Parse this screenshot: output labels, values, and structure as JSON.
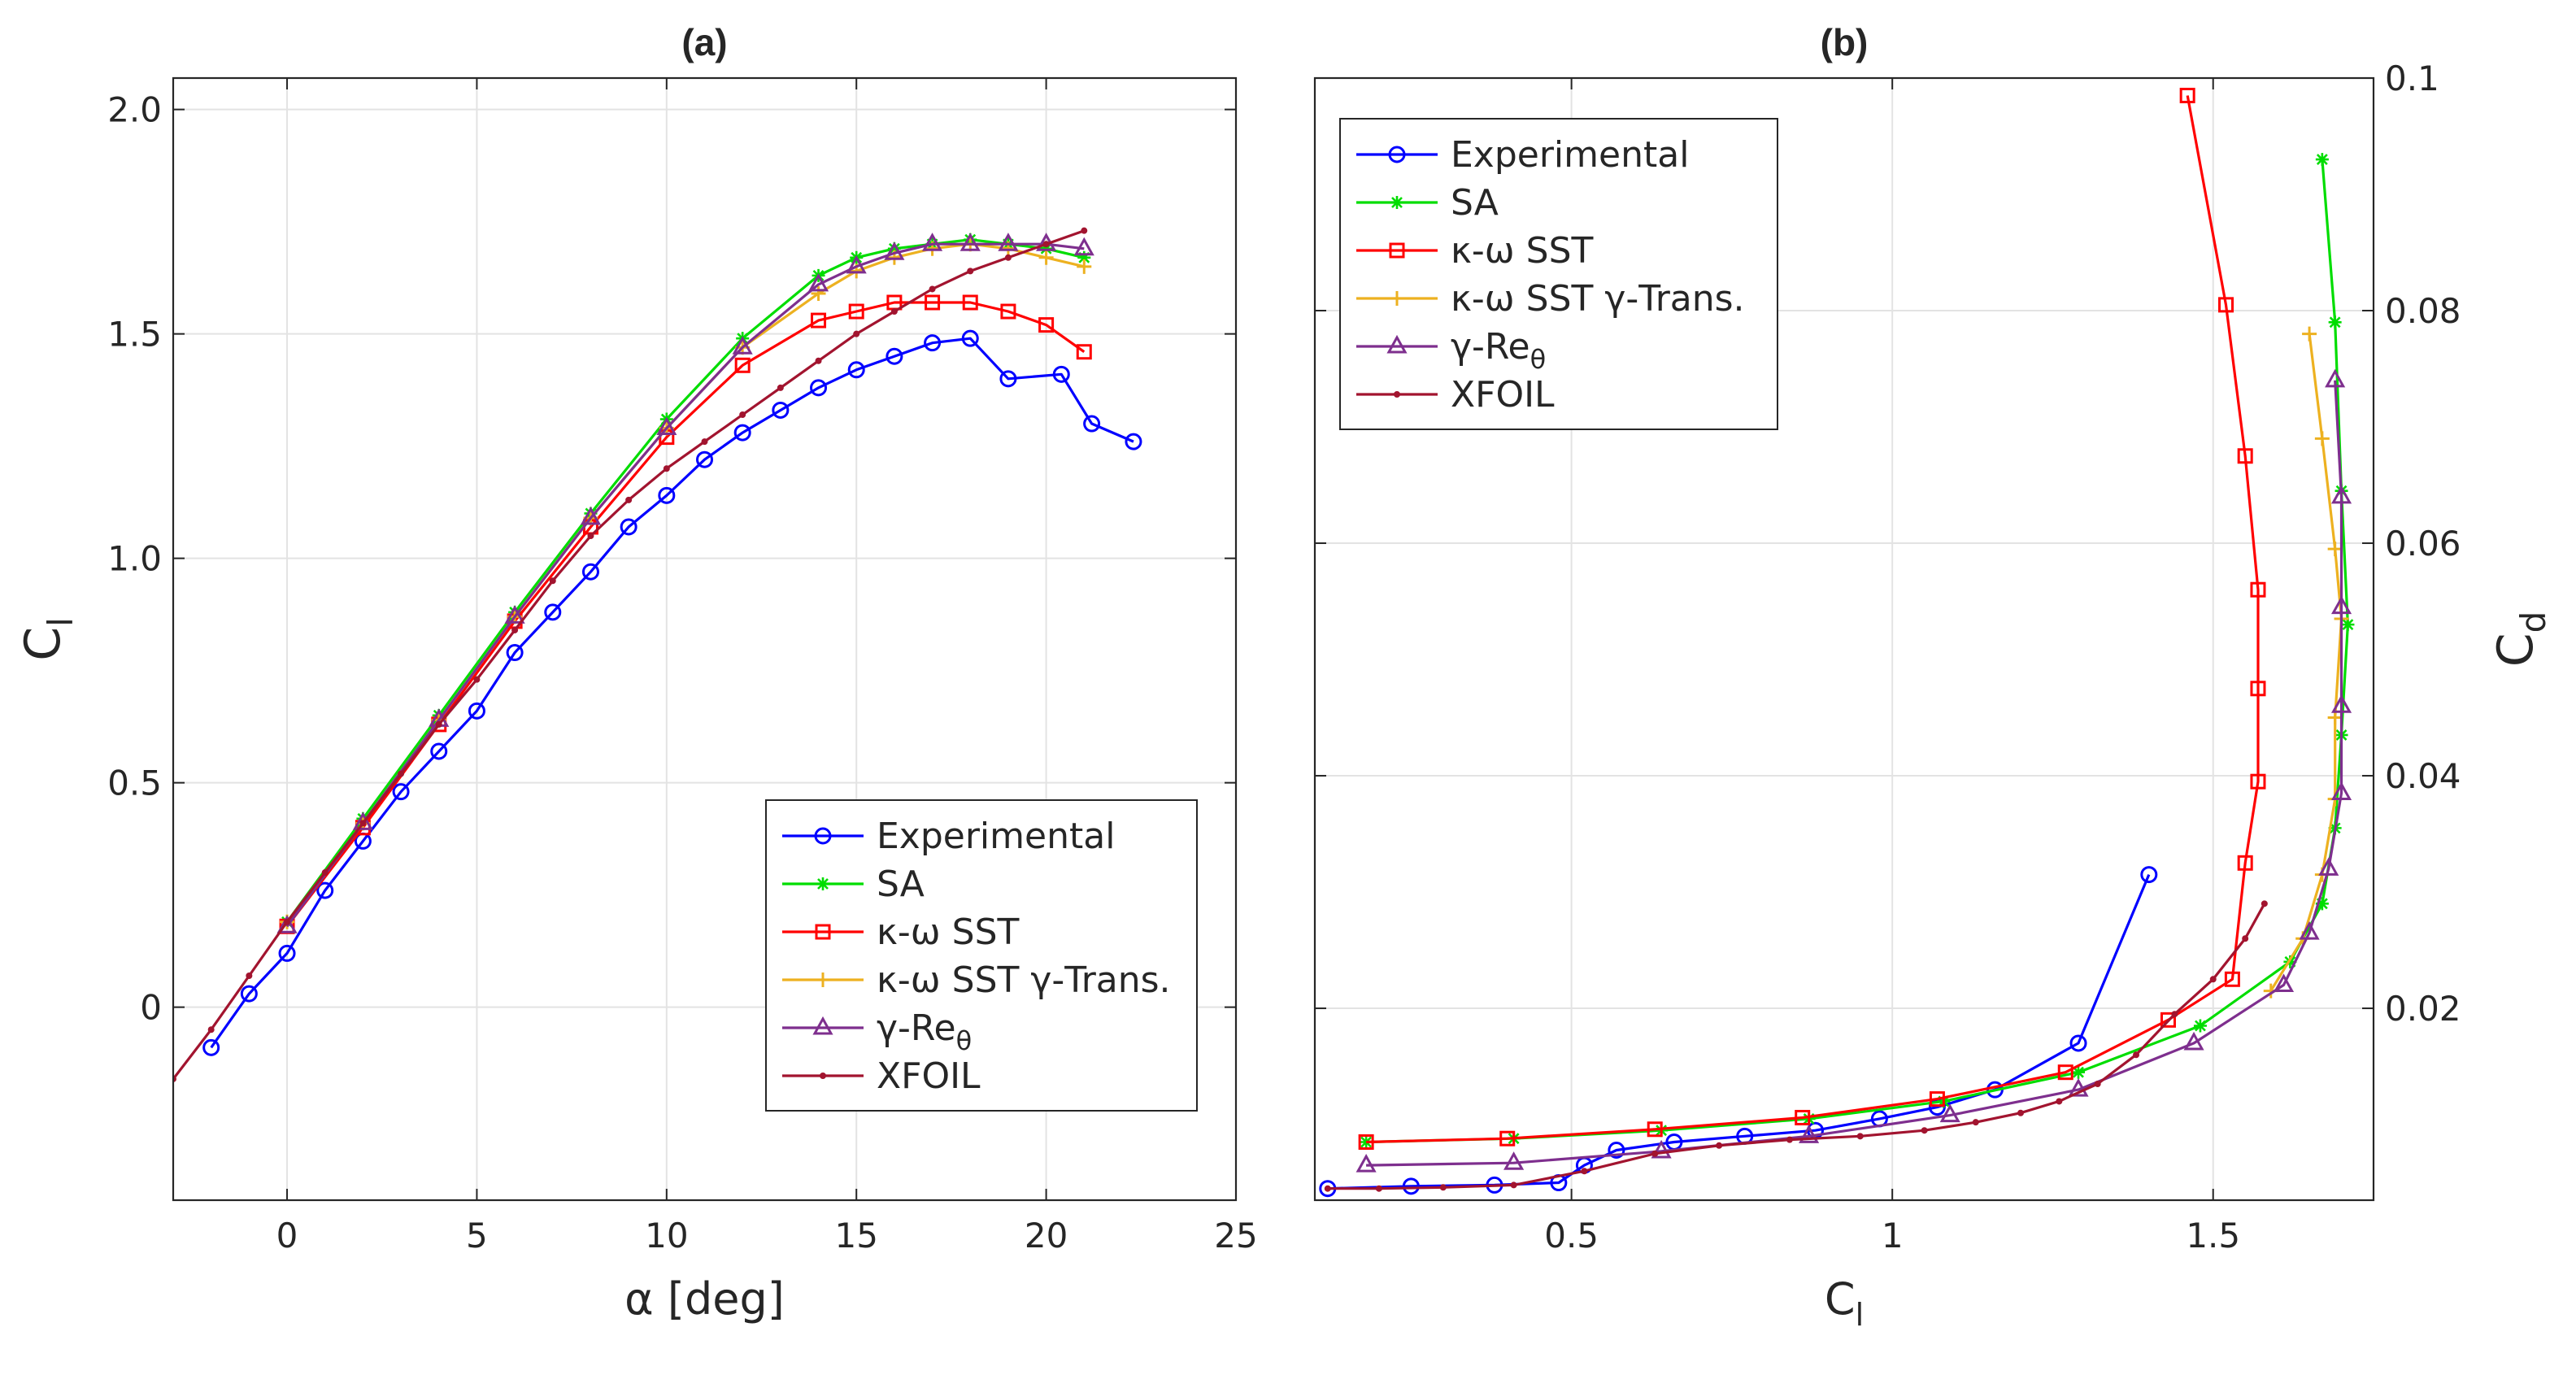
{
  "chart_data": [
    {
      "type": "line",
      "title": "(a)",
      "xlabel": "α [deg]",
      "ylabel": "C",
      "ylabel_subscript": "l",
      "xlim": [
        -3,
        25
      ],
      "ylim": [
        -0.43,
        2.07
      ],
      "xticks": [
        0,
        5,
        10,
        15,
        20,
        25
      ],
      "xtick_labels": [
        "0",
        "5",
        "10",
        "15",
        "20",
        "25"
      ],
      "yticks": [
        0,
        0.5,
        1.0,
        1.5,
        2.0
      ],
      "ytick_labels": [
        "0",
        "0.5",
        "1.0",
        "1.5",
        "2.0"
      ],
      "grid": true,
      "legend_position": "bottom-right",
      "series": [
        {
          "name": "Experimental",
          "color": "#0000ff",
          "marker": "circle",
          "x": [
            -2,
            -1,
            0,
            1,
            2,
            3,
            4,
            5,
            6,
            7,
            8,
            9,
            10,
            11,
            12,
            13,
            14,
            15,
            16,
            17,
            18,
            19,
            20.4,
            21.2,
            22.3
          ],
          "y": [
            -0.09,
            0.03,
            0.12,
            0.26,
            0.37,
            0.48,
            0.57,
            0.66,
            0.79,
            0.88,
            0.97,
            1.07,
            1.14,
            1.22,
            1.28,
            1.33,
            1.38,
            1.42,
            1.45,
            1.48,
            1.49,
            1.4,
            1.41,
            1.3,
            1.26
          ]
        },
        {
          "name": "SA",
          "color": "#00dd00",
          "marker": "asterisk",
          "x": [
            0,
            2,
            4,
            6,
            8,
            10,
            12,
            14,
            15,
            16,
            17,
            18,
            19,
            20,
            21
          ],
          "y": [
            0.19,
            0.42,
            0.65,
            0.88,
            1.1,
            1.31,
            1.49,
            1.63,
            1.67,
            1.69,
            1.7,
            1.71,
            1.7,
            1.69,
            1.67
          ]
        },
        {
          "name": "κ-ω SST",
          "color": "#ff0000",
          "marker": "square",
          "x": [
            0,
            2,
            4,
            6,
            8,
            10,
            12,
            14,
            15,
            16,
            17,
            18,
            19,
            20,
            21
          ],
          "y": [
            0.18,
            0.4,
            0.63,
            0.86,
            1.07,
            1.27,
            1.43,
            1.53,
            1.55,
            1.57,
            1.57,
            1.57,
            1.55,
            1.52,
            1.46
          ]
        },
        {
          "name": "κ-ω SST  γ-Trans.",
          "color": "#edb120",
          "marker": "plus",
          "x": [
            0,
            2,
            4,
            6,
            8,
            10,
            12,
            14,
            15,
            16,
            17,
            18,
            19,
            20,
            21
          ],
          "y": [
            0.19,
            0.41,
            0.64,
            0.87,
            1.09,
            1.29,
            1.47,
            1.59,
            1.64,
            1.67,
            1.69,
            1.7,
            1.69,
            1.67,
            1.65
          ]
        },
        {
          "name": "γ-Re",
          "name_subscript": "θ",
          "color": "#7e2f8e",
          "marker": "triangle",
          "x": [
            0,
            2,
            4,
            6,
            8,
            10,
            12,
            14,
            15,
            16,
            17,
            18,
            19,
            20,
            21
          ],
          "y": [
            0.18,
            0.41,
            0.64,
            0.87,
            1.09,
            1.29,
            1.47,
            1.61,
            1.65,
            1.68,
            1.7,
            1.7,
            1.7,
            1.7,
            1.69
          ]
        },
        {
          "name": "XFOIL",
          "color": "#a2142f",
          "marker": "dot",
          "x": [
            -3,
            -2,
            -1,
            0,
            1,
            2,
            3,
            4,
            5,
            6,
            7,
            8,
            9,
            10,
            11,
            12,
            13,
            14,
            15,
            16,
            17,
            18,
            19,
            20,
            21
          ],
          "y": [
            -0.16,
            -0.05,
            0.07,
            0.19,
            0.3,
            0.41,
            0.52,
            0.63,
            0.73,
            0.84,
            0.95,
            1.05,
            1.13,
            1.2,
            1.26,
            1.32,
            1.38,
            1.44,
            1.5,
            1.55,
            1.6,
            1.64,
            1.67,
            1.7,
            1.73
          ]
        }
      ]
    },
    {
      "type": "line",
      "title": "(b)",
      "xlabel": "C",
      "xlabel_subscript": "l",
      "ylabel": "C",
      "ylabel_subscript": "d",
      "xlim": [
        0.1,
        1.75
      ],
      "ylim": [
        0.0035,
        0.1
      ],
      "xticks": [
        0.5,
        1,
        1.5
      ],
      "xtick_labels": [
        "0.5",
        "1",
        "1.5"
      ],
      "yticks": [
        0.02,
        0.04,
        0.06,
        0.08,
        0.1
      ],
      "ytick_labels": [
        "0.02",
        "0.04",
        "0.06",
        "0.08",
        "0.1"
      ],
      "yaxis_side": "right",
      "grid": true,
      "legend_position": "top-left",
      "series": [
        {
          "name": "Experimental",
          "color": "#0000ff",
          "marker": "circle",
          "x": [
            0.12,
            0.25,
            0.38,
            0.48,
            0.52,
            0.57,
            0.66,
            0.77,
            0.88,
            0.98,
            1.07,
            1.16,
            1.29,
            1.4
          ],
          "y": [
            0.0045,
            0.0047,
            0.0048,
            0.005,
            0.0065,
            0.0078,
            0.0085,
            0.009,
            0.0095,
            0.0105,
            0.0115,
            0.013,
            0.017,
            0.0315
          ]
        },
        {
          "name": "SA",
          "color": "#00dd00",
          "marker": "asterisk",
          "x": [
            0.18,
            0.41,
            0.64,
            0.87,
            1.08,
            1.29,
            1.48,
            1.62,
            1.67,
            1.69,
            1.7,
            1.71,
            1.7,
            1.69,
            1.67
          ],
          "y": [
            0.0085,
            0.0088,
            0.0095,
            0.0105,
            0.012,
            0.0145,
            0.0185,
            0.024,
            0.029,
            0.0355,
            0.0435,
            0.053,
            0.0645,
            0.079,
            0.093
          ]
        },
        {
          "name": "κ-ω SST",
          "color": "#ff0000",
          "marker": "square",
          "x": [
            0.18,
            0.4,
            0.63,
            0.86,
            1.07,
            1.27,
            1.43,
            1.53,
            1.55,
            1.57,
            1.57,
            1.57,
            1.55,
            1.52,
            1.46
          ],
          "y": [
            0.0085,
            0.0088,
            0.0096,
            0.0106,
            0.0122,
            0.0145,
            0.019,
            0.0225,
            0.0325,
            0.0395,
            0.0475,
            0.056,
            0.0675,
            0.0805,
            0.0985
          ]
        },
        {
          "name": "κ-ω SST  γ-Trans.",
          "color": "#edb120",
          "marker": "plus",
          "x": [
            1.59,
            1.64,
            1.67,
            1.69,
            1.69,
            1.7,
            1.69,
            1.67,
            1.65
          ],
          "y": [
            0.0215,
            0.026,
            0.0315,
            0.038,
            0.045,
            0.0535,
            0.0595,
            0.069,
            0.078
          ]
        },
        {
          "name": "γ-Re",
          "name_subscript": "θ",
          "color": "#7e2f8e",
          "marker": "triangle",
          "x": [
            0.18,
            0.41,
            0.64,
            0.87,
            1.09,
            1.29,
            1.47,
            1.61,
            1.65,
            1.68,
            1.7,
            1.7,
            1.7,
            1.7,
            1.69
          ],
          "y": [
            0.0065,
            0.0067,
            0.0077,
            0.009,
            0.0108,
            0.013,
            0.017,
            0.022,
            0.0265,
            0.032,
            0.0385,
            0.046,
            0.0545,
            0.064,
            0.074
          ]
        },
        {
          "name": "XFOIL",
          "color": "#a2142f",
          "marker": "dot",
          "x": [
            0.12,
            0.2,
            0.3,
            0.41,
            0.52,
            0.63,
            0.73,
            0.84,
            0.95,
            1.05,
            1.13,
            1.2,
            1.26,
            1.32,
            1.38,
            1.44,
            1.5,
            1.55,
            1.58
          ],
          "y": [
            0.0045,
            0.0045,
            0.0046,
            0.0048,
            0.006,
            0.0075,
            0.0082,
            0.0087,
            0.009,
            0.0095,
            0.0102,
            0.011,
            0.012,
            0.0135,
            0.016,
            0.0195,
            0.0225,
            0.026,
            0.029
          ]
        }
      ]
    }
  ]
}
